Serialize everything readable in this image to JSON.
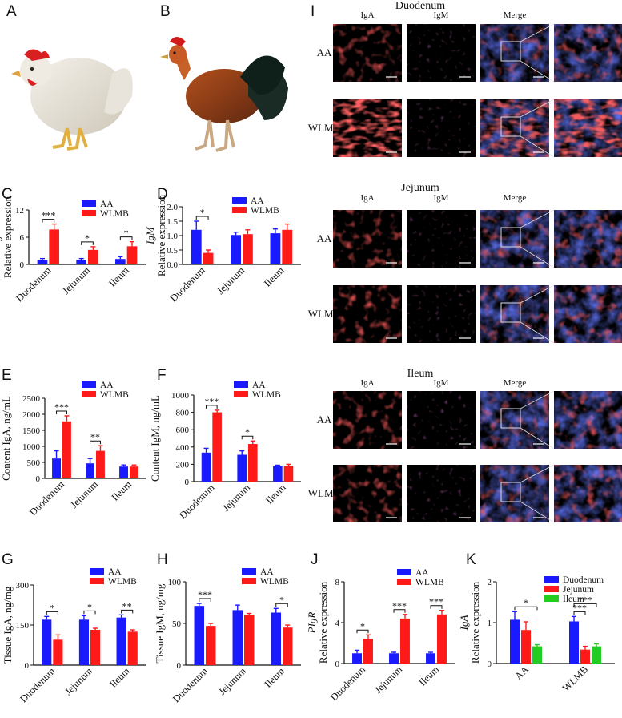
{
  "panel_letters": {
    "A": "A",
    "B": "B",
    "C": "C",
    "D": "D",
    "E": "E",
    "F": "F",
    "G": "G",
    "H": "H",
    "I": "I",
    "J": "J",
    "K": "K"
  },
  "colors": {
    "AA": "#1a1aff",
    "WLMB": "#ff1a1a",
    "Duodenum": "#1a1aff",
    "Jejunum": "#ff1a1a",
    "Ileum": "#22cc22"
  },
  "micro": {
    "sections": [
      {
        "title": "Duodenum",
        "rows": [
          "AA",
          "WLMB"
        ]
      },
      {
        "title": "Jejunum",
        "rows": [
          "AA",
          "WLMB"
        ]
      },
      {
        "title": "Ileum",
        "rows": [
          "AA",
          "WLMB"
        ]
      }
    ],
    "columns": [
      "IgA",
      "IgM",
      "Merge"
    ]
  },
  "chart_data": [
    {
      "panel": "C",
      "type": "bar",
      "categories": [
        "Duodenum",
        "Jejunum",
        "Ileum"
      ],
      "series": [
        {
          "name": "AA",
          "values": [
            1.0,
            1.0,
            1.2
          ],
          "errors": [
            0.3,
            0.3,
            0.5
          ]
        },
        {
          "name": "WLMB",
          "values": [
            7.7,
            3.2,
            4.0
          ],
          "errors": [
            1.2,
            0.7,
            1.0
          ]
        }
      ],
      "ylabel": "Relative expression",
      "gene": "IgA",
      "ylim": [
        0,
        12
      ],
      "yticks": [
        "0",
        "6",
        "12"
      ],
      "sig": [
        {
          "cat": 0,
          "label": "***"
        },
        {
          "cat": 1,
          "label": "*"
        },
        {
          "cat": 2,
          "label": "*"
        }
      ]
    },
    {
      "panel": "D",
      "type": "bar",
      "categories": [
        "Duodenum",
        "Jejunum",
        "Ileum"
      ],
      "series": [
        {
          "name": "AA",
          "values": [
            1.2,
            1.02,
            1.08
          ],
          "errors": [
            0.3,
            0.1,
            0.15
          ]
        },
        {
          "name": "WLMB",
          "values": [
            0.4,
            1.05,
            1.2
          ],
          "errors": [
            0.1,
            0.15,
            0.2
          ]
        }
      ],
      "ylabel": "Relative expression",
      "gene": "IgM",
      "ylim": [
        0,
        2.0
      ],
      "yticks": [
        "0.0",
        "0.5",
        "1.0",
        "1.5",
        "2.0"
      ],
      "sig": [
        {
          "cat": 0,
          "label": "*"
        }
      ]
    },
    {
      "panel": "E",
      "type": "bar",
      "categories": [
        "Duodenum",
        "Jejunum",
        "Ileum"
      ],
      "series": [
        {
          "name": "AA",
          "values": [
            620,
            470,
            370
          ],
          "errors": [
            240,
            150,
            50
          ]
        },
        {
          "name": "WLMB",
          "values": [
            1780,
            860,
            370
          ],
          "errors": [
            170,
            160,
            50
          ]
        }
      ],
      "ylabel": "Content IgA, ng/mL",
      "ylim": [
        0,
        2500
      ],
      "yticks": [
        "0",
        "500",
        "1000",
        "1500",
        "2000",
        "2500"
      ],
      "sig": [
        {
          "cat": 0,
          "label": "***"
        },
        {
          "cat": 1,
          "label": "**"
        }
      ]
    },
    {
      "panel": "F",
      "type": "bar",
      "categories": [
        "Duodenum",
        "Jejunum",
        "Ileum"
      ],
      "series": [
        {
          "name": "AA",
          "values": [
            335,
            310,
            180
          ],
          "errors": [
            50,
            45,
            10
          ]
        },
        {
          "name": "WLMB",
          "values": [
            800,
            435,
            185
          ],
          "errors": [
            25,
            35,
            15
          ]
        }
      ],
      "ylabel": "Content IgM, ng/mL",
      "ylim": [
        0,
        1000
      ],
      "yticks": [
        "0",
        "200",
        "400",
        "600",
        "800",
        "1000"
      ],
      "sig": [
        {
          "cat": 0,
          "label": "***"
        },
        {
          "cat": 1,
          "label": "*"
        }
      ]
    },
    {
      "panel": "G",
      "type": "bar",
      "categories": [
        "Duodenum",
        "Jejunum",
        "Ileum"
      ],
      "series": [
        {
          "name": "AA",
          "values": [
            170,
            170,
            178
          ],
          "errors": [
            12,
            15,
            10
          ]
        },
        {
          "name": "WLMB",
          "values": [
            95,
            132,
            125
          ],
          "errors": [
            18,
            6,
            7
          ]
        }
      ],
      "ylabel": "Tissue IgA, ng/mg",
      "ylim": [
        0,
        300
      ],
      "yticks": [
        "0",
        "150",
        "300"
      ],
      "sig": [
        {
          "cat": 0,
          "label": "*"
        },
        {
          "cat": 1,
          "label": "*"
        },
        {
          "cat": 2,
          "label": "**"
        }
      ]
    },
    {
      "panel": "H",
      "type": "bar",
      "categories": [
        "Duodenum",
        "Jejunum",
        "Ileum"
      ],
      "series": [
        {
          "name": "AA",
          "values": [
            71,
            66,
            63
          ],
          "errors": [
            3,
            6,
            5
          ]
        },
        {
          "name": "WLMB",
          "values": [
            47,
            60,
            45
          ],
          "errors": [
            3,
            2,
            3
          ]
        }
      ],
      "ylabel": "Tissue IgM, ng/mg",
      "ylim": [
        0,
        100
      ],
      "yticks": [
        "0",
        "50",
        "100"
      ],
      "sig": [
        {
          "cat": 0,
          "label": "***"
        },
        {
          "cat": 2,
          "label": "*"
        }
      ]
    },
    {
      "panel": "J",
      "type": "bar",
      "categories": [
        "Duodenum",
        "Jejunum",
        "Ileum"
      ],
      "series": [
        {
          "name": "AA",
          "values": [
            1.0,
            1.0,
            1.0
          ],
          "errors": [
            0.3,
            0.1,
            0.1
          ]
        },
        {
          "name": "WLMB",
          "values": [
            2.4,
            4.4,
            4.8
          ],
          "errors": [
            0.4,
            0.4,
            0.4
          ]
        }
      ],
      "ylabel": "Relative expression",
      "gene": "PIgR",
      "ylim": [
        0,
        8
      ],
      "yticks": [
        "0",
        "4",
        "8"
      ],
      "sig": [
        {
          "cat": 0,
          "label": "*"
        },
        {
          "cat": 1,
          "label": "***"
        },
        {
          "cat": 2,
          "label": "***"
        }
      ]
    },
    {
      "panel": "K",
      "type": "bar",
      "categories": [
        "AA",
        "WLMB"
      ],
      "series": [
        {
          "name": "Duodenum",
          "values": [
            1.07,
            1.03
          ],
          "errors": [
            0.2,
            0.12
          ]
        },
        {
          "name": "Jejunum",
          "values": [
            0.82,
            0.34
          ],
          "errors": [
            0.2,
            0.08
          ]
        },
        {
          "name": "Ileum",
          "values": [
            0.42,
            0.42
          ],
          "errors": [
            0.04,
            0.06
          ]
        }
      ],
      "ylabel": "Relative expression",
      "gene": "IgA",
      "ylim": [
        0,
        2
      ],
      "yticks": [
        "0",
        "1",
        "2"
      ],
      "sig": [
        {
          "cat": 0,
          "from": 0,
          "to": 2,
          "label": "*"
        },
        {
          "cat": 1,
          "from": 0,
          "to": 1,
          "label": "***"
        },
        {
          "cat": 1,
          "from": 0,
          "to": 2,
          "label": "***"
        }
      ]
    }
  ]
}
